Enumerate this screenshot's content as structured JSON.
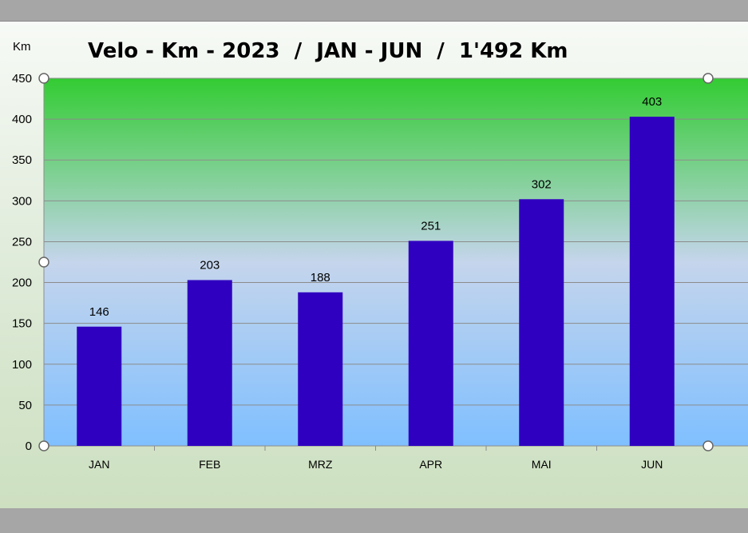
{
  "chart_data": {
    "type": "bar",
    "title": "Velo - Km - 2023  /  JAN - JUN  /  1'492 Km",
    "ylabel": "Km",
    "xlabel": "",
    "categories": [
      "JAN",
      "FEB",
      "MRZ",
      "APR",
      "MAI",
      "JUN"
    ],
    "values": [
      146,
      203,
      188,
      251,
      302,
      403
    ],
    "ylim": [
      0,
      450
    ],
    "yticks": [
      0,
      50,
      100,
      150,
      200,
      250,
      300,
      350,
      400,
      450
    ],
    "grid": true,
    "legend": "none",
    "colors": {
      "bar": "#3000c0",
      "plot_top": "#33cc33",
      "plot_mid": "#c5d5ec",
      "plot_bottom": "#7fbfff",
      "gridline": "#8c8c8c"
    }
  }
}
